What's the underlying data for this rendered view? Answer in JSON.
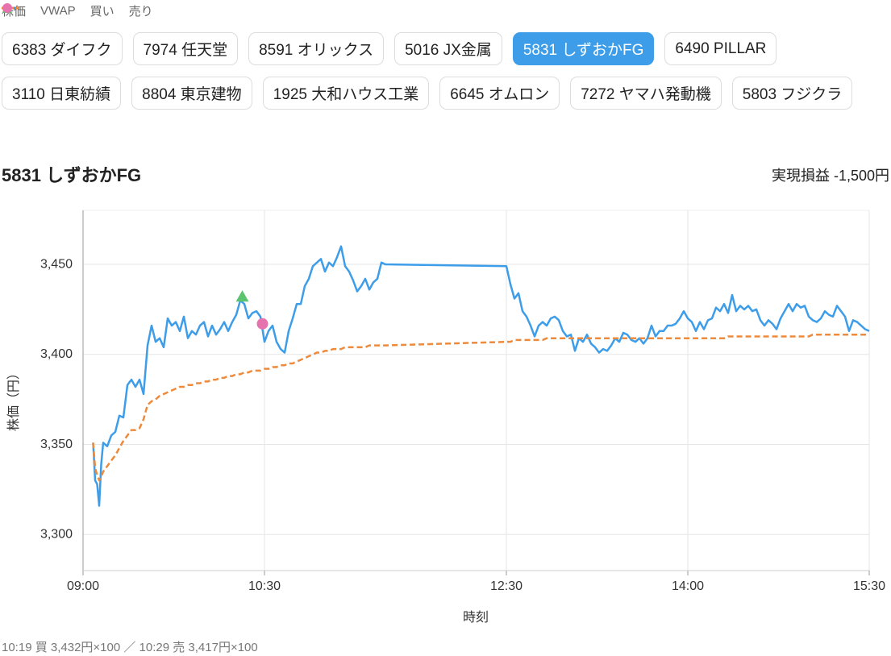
{
  "tabs": [
    "6383 ダイフク",
    "7974 任天堂",
    "8591 オリックス",
    "5016 JX金属",
    "5831 しずおかFG",
    "6490 PILLAR",
    "3110 日東紡績",
    "8804 東京建物",
    "1925 大和ハウス工業",
    "6645 オムロン",
    "7272 ヤマハ発動機",
    "5803 フジクラ"
  ],
  "active_tab": 4,
  "footer": "10:19 買 3,432円×100 ／ 10:29 売 3,417円×100",
  "chart_data": {
    "type": "line",
    "title": "5831 しずおかFG",
    "pnl": "実現損益 -1,500円",
    "x_label": "時刻",
    "y_label": "株価（円）",
    "grid": true,
    "xlim": [
      "09:00",
      "15:30"
    ],
    "xticks": [
      "09:00",
      "10:30",
      "12:30",
      "14:00",
      "15:30"
    ],
    "ylim": [
      3280,
      3480
    ],
    "yticks": [
      {
        "value": 3300,
        "label": "3,300"
      },
      {
        "value": 3350,
        "label": "3,350"
      },
      {
        "value": 3400,
        "label": "3,400"
      },
      {
        "value": 3450,
        "label": "3,450"
      }
    ],
    "x": [
      "09:05",
      "09:06",
      "09:07",
      "09:08",
      "09:09",
      "09:10",
      "09:12",
      "09:14",
      "09:16",
      "09:18",
      "09:20",
      "09:22",
      "09:24",
      "09:26",
      "09:28",
      "09:30",
      "09:32",
      "09:34",
      "09:36",
      "09:38",
      "09:40",
      "09:42",
      "09:44",
      "09:46",
      "09:48",
      "09:50",
      "09:52",
      "09:54",
      "09:56",
      "09:58",
      "10:00",
      "10:02",
      "10:04",
      "10:06",
      "10:08",
      "10:10",
      "10:12",
      "10:14",
      "10:16",
      "10:18",
      "10:20",
      "10:22",
      "10:24",
      "10:26",
      "10:28",
      "10:30",
      "10:32",
      "10:34",
      "10:36",
      "10:38",
      "10:40",
      "10:42",
      "10:44",
      "10:46",
      "10:48",
      "10:50",
      "10:52",
      "10:54",
      "10:56",
      "10:58",
      "11:00",
      "11:02",
      "11:04",
      "11:06",
      "11:08",
      "11:10",
      "11:12",
      "11:14",
      "11:16",
      "11:18",
      "11:20",
      "11:22",
      "11:24",
      "11:26",
      "11:28",
      "11:30",
      "12:30",
      "12:32",
      "12:34",
      "12:36",
      "12:38",
      "12:40",
      "12:42",
      "12:44",
      "12:46",
      "12:48",
      "12:50",
      "12:52",
      "12:54",
      "12:56",
      "12:58",
      "13:00",
      "13:02",
      "13:04",
      "13:06",
      "13:08",
      "13:10",
      "13:12",
      "13:14",
      "13:16",
      "13:18",
      "13:20",
      "13:22",
      "13:24",
      "13:26",
      "13:28",
      "13:30",
      "13:32",
      "13:34",
      "13:36",
      "13:38",
      "13:40",
      "13:42",
      "13:44",
      "13:46",
      "13:48",
      "13:50",
      "13:52",
      "13:54",
      "13:56",
      "13:58",
      "14:00",
      "14:02",
      "14:04",
      "14:06",
      "14:08",
      "14:10",
      "14:12",
      "14:14",
      "14:16",
      "14:18",
      "14:20",
      "14:22",
      "14:24",
      "14:26",
      "14:28",
      "14:30",
      "14:32",
      "14:34",
      "14:36",
      "14:38",
      "14:40",
      "14:42",
      "14:44",
      "14:46",
      "14:48",
      "14:50",
      "14:52",
      "14:54",
      "14:56",
      "14:58",
      "15:00",
      "15:02",
      "15:04",
      "15:06",
      "15:08",
      "15:10",
      "15:12",
      "15:14",
      "15:16",
      "15:18",
      "15:20",
      "15:22",
      "15:24",
      "15:26",
      "15:28",
      "15:30"
    ],
    "series": [
      {
        "name": "株価",
        "color": "#3d9de9",
        "style": "solid",
        "values": [
          3351,
          3330,
          3328,
          3316,
          3339,
          3351,
          3349,
          3355,
          3357,
          3366,
          3365,
          3383,
          3386,
          3382,
          3386,
          3378,
          3405,
          3416,
          3407,
          3409,
          3404,
          3420,
          3416,
          3418,
          3413,
          3421,
          3409,
          3413,
          3411,
          3416,
          3418,
          3410,
          3416,
          3411,
          3414,
          3418,
          3413,
          3418,
          3422,
          3430,
          3428,
          3420,
          3423,
          3424,
          3421,
          3407,
          3413,
          3416,
          3407,
          3403,
          3401,
          3413,
          3420,
          3428,
          3428,
          3438,
          3442,
          3449,
          3451,
          3453,
          3446,
          3451,
          3449,
          3454,
          3460,
          3449,
          3446,
          3441,
          3435,
          3438,
          3442,
          3436,
          3440,
          3442,
          3451,
          3450,
          3449,
          3439,
          3431,
          3434,
          3424,
          3421,
          3416,
          3410,
          3416,
          3418,
          3416,
          3420,
          3421,
          3419,
          3413,
          3410,
          3411,
          3402,
          3409,
          3407,
          3411,
          3406,
          3404,
          3401,
          3403,
          3402,
          3405,
          3409,
          3407,
          3412,
          3411,
          3408,
          3407,
          3409,
          3406,
          3409,
          3416,
          3410,
          3413,
          3413,
          3416,
          3416,
          3417,
          3420,
          3424,
          3420,
          3418,
          3413,
          3418,
          3414,
          3419,
          3420,
          3426,
          3424,
          3428,
          3423,
          3433,
          3424,
          3427,
          3425,
          3427,
          3424,
          3425,
          3419,
          3416,
          3419,
          3417,
          3414,
          3420,
          3424,
          3428,
          3424,
          3428,
          3426,
          3427,
          3421,
          3419,
          3418,
          3420,
          3424,
          3422,
          3421,
          3427,
          3424,
          3421,
          3413,
          3419,
          3418,
          3416,
          3414,
          3413
        ]
      },
      {
        "name": "VWAP",
        "color": "#ed8a3c",
        "style": "dashed",
        "values": [
          3351,
          3337,
          3333,
          3330,
          3332,
          3335,
          3338,
          3341,
          3344,
          3348,
          3352,
          3355,
          3358,
          3358,
          3359,
          3364,
          3372,
          3374,
          3375,
          3377,
          3378,
          3379,
          3380,
          3381,
          3382,
          3382,
          3383,
          3383,
          3384,
          3384,
          3385,
          3385,
          3386,
          3386,
          3387,
          3387,
          3388,
          3388,
          3389,
          3389,
          3390,
          3390,
          3391,
          3391,
          3391,
          3392,
          3392,
          3393,
          3393,
          3394,
          3394,
          3395,
          3395,
          3396,
          3397,
          3398,
          3399,
          3400,
          3401,
          3401,
          3402,
          3402,
          3403,
          3403,
          3403,
          3404,
          3404,
          3404,
          3404,
          3404,
          3404,
          3405,
          3405,
          3405,
          3405,
          3405,
          3407,
          3407,
          3408,
          3408,
          3408,
          3408,
          3408,
          3408,
          3408,
          3408,
          3409,
          3409,
          3409,
          3409,
          3409,
          3409,
          3409,
          3409,
          3409,
          3409,
          3409,
          3409,
          3409,
          3409,
          3409,
          3409,
          3409,
          3409,
          3409,
          3409,
          3409,
          3409,
          3409,
          3409,
          3409,
          3409,
          3409,
          3409,
          3409,
          3409,
          3409,
          3409,
          3409,
          3409,
          3409,
          3409,
          3409,
          3409,
          3409,
          3409,
          3409,
          3409,
          3409,
          3409,
          3409,
          3410,
          3410,
          3410,
          3410,
          3410,
          3410,
          3410,
          3410,
          3410,
          3410,
          3410,
          3410,
          3410,
          3410,
          3410,
          3410,
          3410,
          3410,
          3410,
          3410,
          3410,
          3411,
          3411,
          3411,
          3411,
          3411,
          3411,
          3411,
          3411,
          3411,
          3411,
          3411,
          3411,
          3411,
          3411,
          3411
        ]
      },
      {
        "name": "買い",
        "color": "#5cc46e",
        "marker": "triangle",
        "x": [
          "10:19"
        ],
        "values": [
          3432
        ]
      },
      {
        "name": "売り",
        "color": "#e672ae",
        "marker": "circle",
        "x": [
          "10:29"
        ],
        "values": [
          3417
        ]
      }
    ]
  }
}
